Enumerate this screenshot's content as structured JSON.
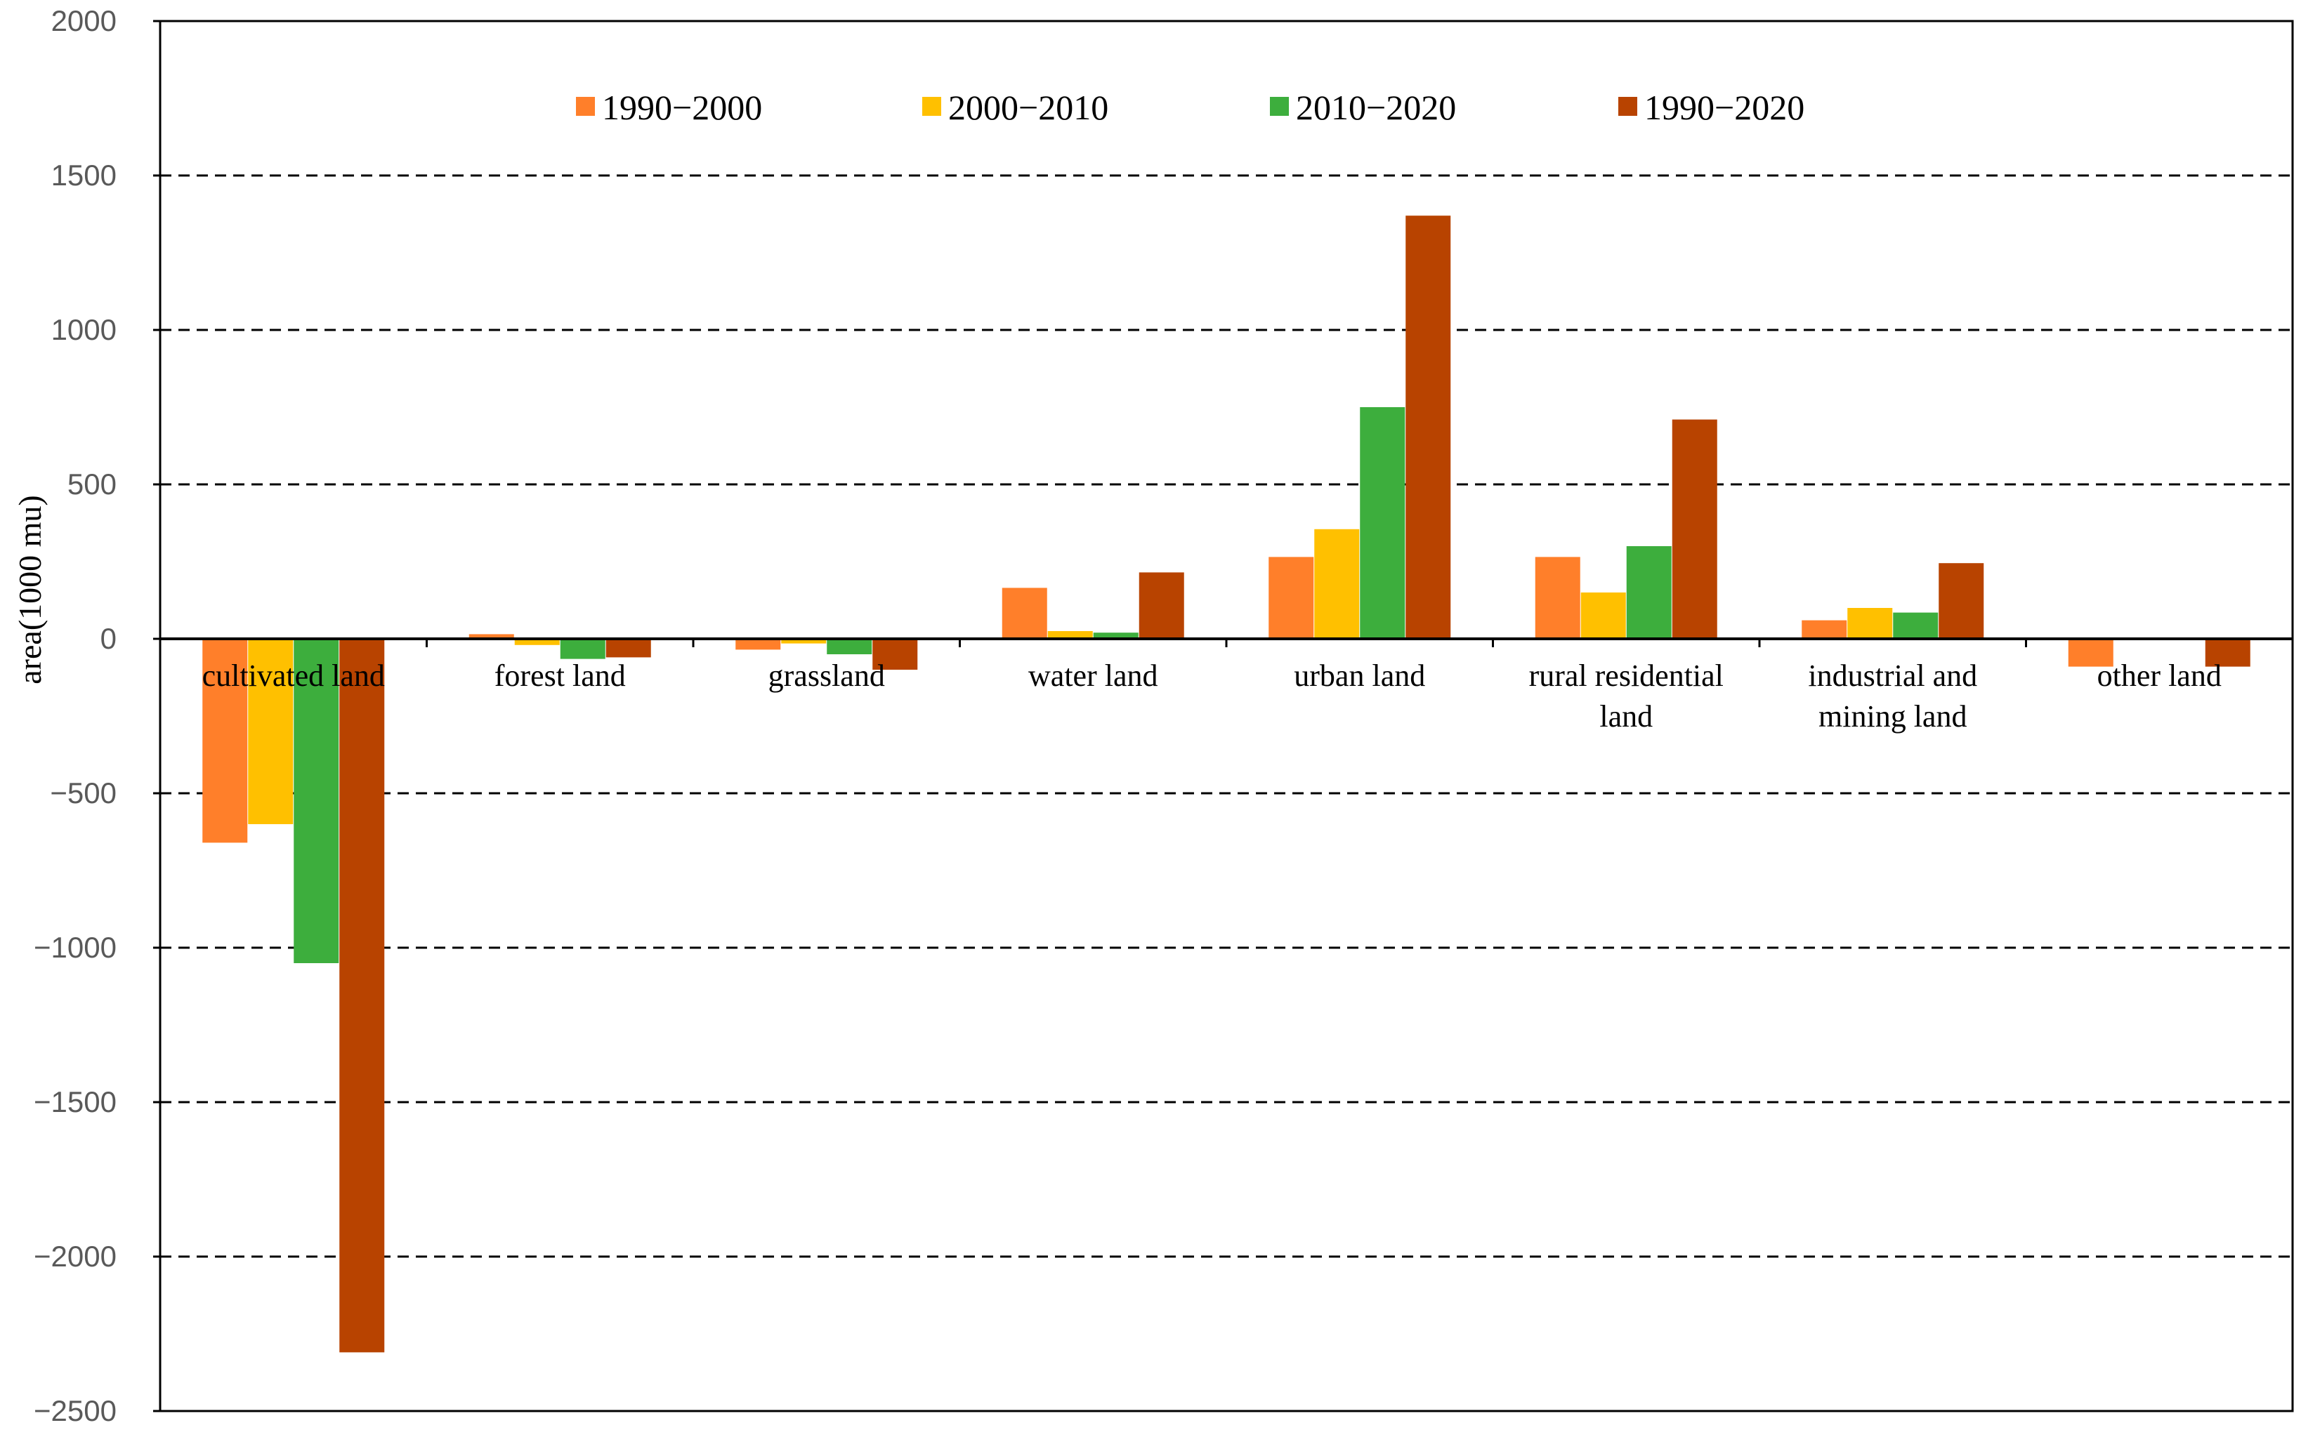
{
  "chart_data": {
    "type": "bar",
    "title": "",
    "xlabel": "",
    "ylabel": "area(1000 mu)",
    "ylim": [
      -2500,
      2000
    ],
    "yticks": [
      2000,
      1500,
      1000,
      500,
      0,
      -500,
      -1000,
      -1500,
      -2000,
      -2500
    ],
    "grid": "horizontal dashed",
    "legend_position": "top-center",
    "categories": [
      [
        "cultivated land"
      ],
      [
        "forest land"
      ],
      [
        "grassland"
      ],
      [
        "water land"
      ],
      [
        "urban land"
      ],
      [
        "rural residential",
        "land"
      ],
      [
        "industrial and",
        "mining land"
      ],
      [
        "other land"
      ]
    ],
    "series": [
      {
        "name": "1990−2000",
        "color": "#FF7F2A",
        "values": [
          -660,
          15,
          -35,
          165,
          265,
          265,
          60,
          -90
        ]
      },
      {
        "name": "2000−2010",
        "color": "#FFC000",
        "values": [
          -600,
          -20,
          -15,
          25,
          355,
          150,
          100,
          0
        ]
      },
      {
        "name": "2010−2020",
        "color": "#3DAE3D",
        "values": [
          -1050,
          -65,
          -50,
          20,
          750,
          300,
          85,
          0
        ]
      },
      {
        "name": "1990−2020",
        "color": "#B84300",
        "values": [
          -2310,
          -60,
          -100,
          215,
          1370,
          710,
          245,
          -90
        ]
      }
    ]
  }
}
